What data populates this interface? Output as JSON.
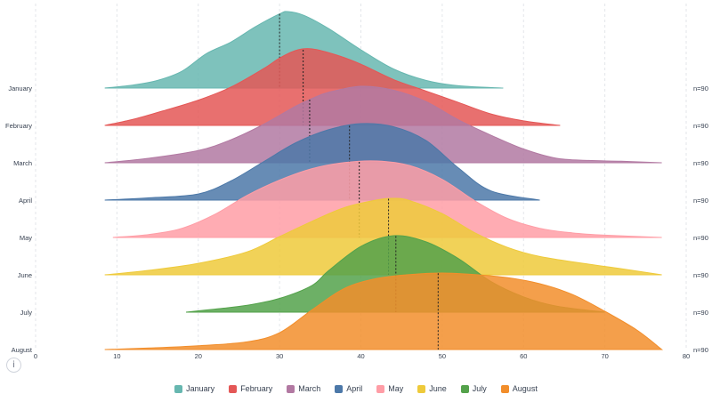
{
  "chart_data": {
    "type": "ridgeline",
    "x_ticks": [
      0,
      10,
      20,
      30,
      40,
      50,
      60,
      70,
      80
    ],
    "xlim": [
      0,
      80
    ],
    "grid": "vertical-dashed",
    "legend_position": "bottom",
    "series": [
      {
        "name": "January",
        "color": "#67b7b0",
        "n_label": "n=90",
        "median": 30.0,
        "x": [
          8.5,
          12,
          15,
          18,
          21,
          24,
          27,
          30,
          31,
          33,
          36,
          40,
          44,
          48,
          52,
          57.5
        ],
        "d": [
          0.0,
          0.04,
          0.1,
          0.22,
          0.45,
          0.6,
          0.8,
          0.97,
          1.0,
          0.95,
          0.78,
          0.5,
          0.25,
          0.1,
          0.03,
          0.0
        ]
      },
      {
        "name": "February",
        "color": "#e45756",
        "n_label": "n=90",
        "median": 32.9,
        "x": [
          8.5,
          12,
          16,
          20,
          24,
          28,
          30,
          32,
          34,
          37,
          40,
          44,
          48,
          52,
          56,
          60,
          64.5
        ],
        "d": [
          0.0,
          0.08,
          0.2,
          0.33,
          0.5,
          0.74,
          0.88,
          0.98,
          1.0,
          0.92,
          0.8,
          0.6,
          0.45,
          0.3,
          0.15,
          0.06,
          0.0
        ]
      },
      {
        "name": "March",
        "color": "#b279a2",
        "n_label": "n=90",
        "median": 33.7,
        "x": [
          8.5,
          14,
          20,
          24,
          28,
          32,
          34,
          36,
          40,
          44,
          48,
          52,
          56,
          60,
          64,
          68,
          72,
          77
        ],
        "d": [
          0.0,
          0.06,
          0.16,
          0.3,
          0.5,
          0.74,
          0.84,
          0.92,
          1.0,
          0.95,
          0.8,
          0.56,
          0.36,
          0.18,
          0.06,
          0.03,
          0.02,
          0.0
        ]
      },
      {
        "name": "April",
        "color": "#4c78a8",
        "n_label": "n=90",
        "median": 38.6,
        "x": [
          8.5,
          14,
          20,
          24,
          28,
          32,
          36,
          40,
          44,
          48,
          52,
          56,
          62
        ],
        "d": [
          0.0,
          0.03,
          0.08,
          0.25,
          0.5,
          0.75,
          0.92,
          1.0,
          0.96,
          0.78,
          0.42,
          0.12,
          0.0
        ]
      },
      {
        "name": "May",
        "color": "#ff9da6",
        "n_label": "n=90",
        "median": 39.8,
        "x": [
          9.5,
          14,
          18,
          22,
          26,
          30,
          34,
          38,
          42,
          46,
          50,
          54,
          58,
          62,
          66,
          70,
          77
        ],
        "d": [
          0.0,
          0.04,
          0.12,
          0.3,
          0.55,
          0.75,
          0.9,
          0.98,
          1.0,
          0.94,
          0.76,
          0.48,
          0.25,
          0.12,
          0.06,
          0.03,
          0.0
        ]
      },
      {
        "name": "June",
        "color": "#eeca3b",
        "n_label": "n=90",
        "median": 43.4,
        "x": [
          8.5,
          14,
          20,
          26,
          30,
          34,
          38,
          42,
          44,
          46,
          50,
          54,
          58,
          62,
          68,
          72,
          77
        ],
        "d": [
          0.0,
          0.06,
          0.15,
          0.3,
          0.5,
          0.7,
          0.88,
          0.98,
          1.0,
          0.97,
          0.8,
          0.55,
          0.36,
          0.24,
          0.14,
          0.08,
          0.0
        ]
      },
      {
        "name": "July",
        "color": "#54a24b",
        "n_label": "n=90",
        "median": 44.3,
        "x": [
          18.5,
          22,
          26,
          30,
          34,
          36,
          40,
          44,
          48,
          52,
          56,
          60,
          64,
          70
        ],
        "d": [
          0.0,
          0.04,
          0.09,
          0.18,
          0.35,
          0.54,
          0.86,
          1.0,
          0.92,
          0.7,
          0.4,
          0.2,
          0.08,
          0.0
        ]
      },
      {
        "name": "August",
        "color": "#f28e2b",
        "n_label": "n=90",
        "median": 49.5,
        "x": [
          8.5,
          14,
          20,
          26,
          30,
          34,
          38,
          42,
          46,
          50,
          54,
          58,
          62,
          66,
          70,
          74,
          77
        ],
        "d": [
          0.0,
          0.02,
          0.05,
          0.1,
          0.22,
          0.52,
          0.8,
          0.93,
          0.98,
          1.0,
          0.98,
          0.94,
          0.86,
          0.72,
          0.5,
          0.25,
          0.0
        ]
      }
    ]
  },
  "info_label": "i"
}
